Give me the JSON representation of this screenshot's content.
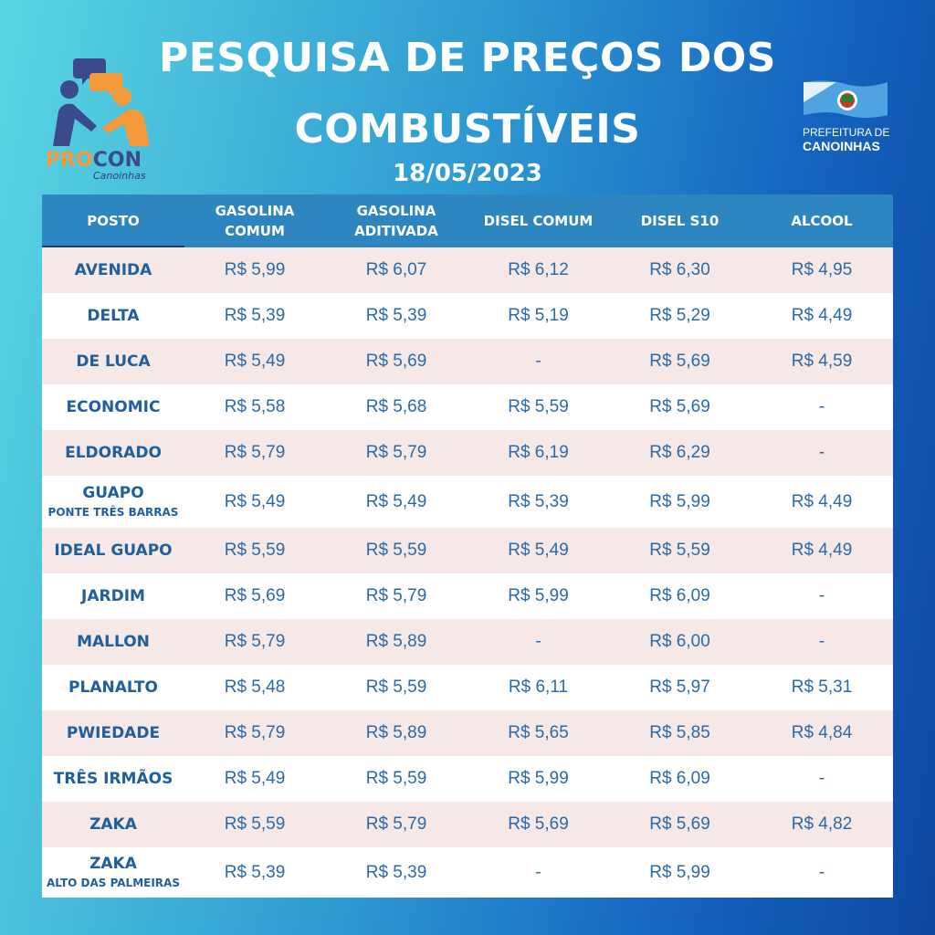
{
  "header": {
    "title_line1": "PESQUISA DE PREÇOS DOS",
    "title_line2": "COMBUSTÍVEIS",
    "date": "18/05/2023"
  },
  "logos": {
    "procon_pro": "PRO",
    "procon_con": "CON",
    "procon_sub": "Canoinhas",
    "prefeitura_line1": "PREFEITURA DE",
    "prefeitura_line2": "CANOINHAS"
  },
  "colors": {
    "header_bg": "#2e86c1",
    "row_alt": "#f5e8e6",
    "text_blue": "#1f5f9e",
    "procon_orange": "#f59a3a",
    "procon_navy": "#3b4a8a"
  },
  "table": {
    "columns": [
      [
        "POSTO"
      ],
      [
        "GASOLINA",
        "COMUM"
      ],
      [
        "GASOLINA",
        "ADITIVADA"
      ],
      [
        "DISEL COMUM"
      ],
      [
        "DISEL S10"
      ],
      [
        "ALCOOL"
      ]
    ],
    "rows": [
      {
        "name": "AVENIDA",
        "sub": "",
        "values": [
          "R$ 5,99",
          "R$ 6,07",
          "R$ 6,12",
          "R$ 6,30",
          "R$ 4,95"
        ]
      },
      {
        "name": "DELTA",
        "sub": "",
        "values": [
          "R$ 5,39",
          "R$ 5,39",
          "R$ 5,19",
          "R$ 5,29",
          "R$ 4,49"
        ]
      },
      {
        "name": "DE LUCA",
        "sub": "",
        "values": [
          "R$ 5,49",
          "R$ 5,69",
          "-",
          "R$ 5,69",
          "R$ 4,59"
        ]
      },
      {
        "name": "ECONOMIC",
        "sub": "",
        "values": [
          "R$ 5,58",
          "R$ 5,68",
          "R$ 5,59",
          "R$ 5,69",
          "-"
        ]
      },
      {
        "name": "ELDORADO",
        "sub": "",
        "values": [
          "R$ 5,79",
          "R$ 5,79",
          "R$ 6,19",
          "R$ 6,29",
          "-"
        ]
      },
      {
        "name": "GUAPO",
        "sub": "PONTE TRÊS BARRAS",
        "values": [
          "R$ 5,49",
          "R$ 5,49",
          "R$ 5,39",
          "R$ 5,99",
          "R$ 4,49"
        ]
      },
      {
        "name": "IDEAL GUAPO",
        "sub": "",
        "values": [
          "R$ 5,59",
          "R$ 5,59",
          "R$ 5,49",
          "R$ 5,59",
          "R$ 4,49"
        ]
      },
      {
        "name": "JARDIM",
        "sub": "",
        "values": [
          "R$ 5,69",
          "R$ 5,79",
          "R$ 5,99",
          "R$ 6,09",
          "-"
        ]
      },
      {
        "name": "MALLON",
        "sub": "",
        "values": [
          "R$ 5,79",
          "R$ 5,89",
          "-",
          "R$ 6,00",
          "-"
        ]
      },
      {
        "name": "PLANALTO",
        "sub": "",
        "values": [
          "R$ 5,48",
          "R$ 5,59",
          "R$ 6,11",
          "R$ 5,97",
          "R$ 5,31"
        ]
      },
      {
        "name": "PWIEDADE",
        "sub": "",
        "values": [
          "R$ 5,79",
          "R$ 5,89",
          "R$ 5,65",
          "R$ 5,85",
          "R$ 4,84"
        ]
      },
      {
        "name": "TRÊS IRMÃOS",
        "sub": "",
        "values": [
          "R$ 5,49",
          "R$ 5,59",
          "R$ 5,99",
          "R$ 6,09",
          "-"
        ]
      },
      {
        "name": "ZAKA",
        "sub": "",
        "values": [
          "R$ 5,59",
          "R$ 5,79",
          "R$ 5,69",
          "R$ 5,69",
          "R$ 4,82"
        ]
      },
      {
        "name": "ZAKA",
        "sub": "ALTO DAS PALMEIRAS",
        "values": [
          "R$ 5,39",
          "R$ 5,39",
          "-",
          "R$ 5,99",
          "-"
        ]
      }
    ]
  }
}
